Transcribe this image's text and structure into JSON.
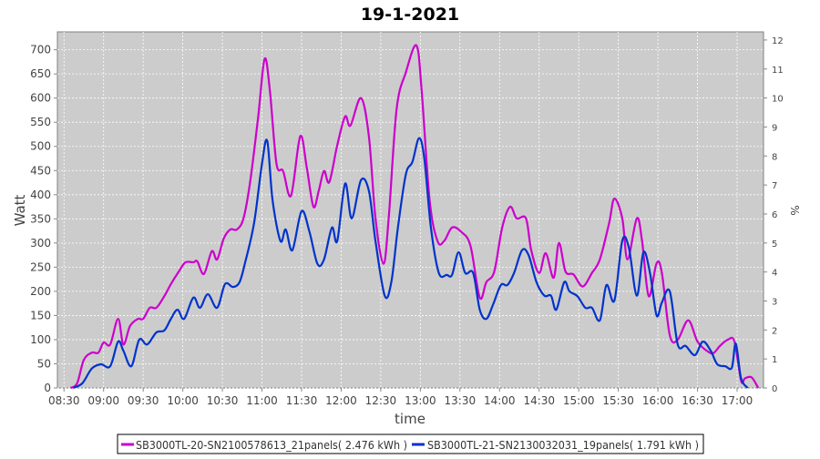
{
  "chart_data": {
    "type": "line",
    "title": "19-1-2021",
    "xlabel": "time",
    "ylabel": "Watt",
    "y2label": "%",
    "ylim": [
      0,
      737
    ],
    "y2lim": [
      0,
      12.28
    ],
    "xlim": [
      "08:25",
      "17:20"
    ],
    "yticks": [
      0,
      50,
      100,
      150,
      200,
      250,
      300,
      350,
      400,
      450,
      500,
      550,
      600,
      650,
      700
    ],
    "y2ticks": [
      0,
      1,
      2,
      3,
      4,
      5,
      6,
      7,
      8,
      9,
      10,
      11,
      12
    ],
    "xticks": [
      "08:30",
      "09:00",
      "09:30",
      "10:00",
      "10:30",
      "11:00",
      "11:30",
      "12:00",
      "12:30",
      "13:00",
      "13:30",
      "14:00",
      "14:30",
      "15:00",
      "15:30",
      "16:00",
      "16:30",
      "17:00"
    ],
    "grid": true,
    "legend_position": "bottom",
    "series": [
      {
        "name": "SB3000TL-20-SN2100578613_21panels( 2.476 kWh )",
        "color": "#cc00cc",
        "points": [
          [
            "08:35",
            0
          ],
          [
            "08:40",
            10
          ],
          [
            "08:45",
            58
          ],
          [
            "08:51",
            73
          ],
          [
            "08:56",
            73
          ],
          [
            "09:00",
            94
          ],
          [
            "09:05",
            90
          ],
          [
            "09:11",
            143
          ],
          [
            "09:15",
            90
          ],
          [
            "09:20",
            128
          ],
          [
            "09:26",
            143
          ],
          [
            "09:30",
            143
          ],
          [
            "09:35",
            166
          ],
          [
            "09:40",
            166
          ],
          [
            "09:46",
            190
          ],
          [
            "09:51",
            215
          ],
          [
            "09:57",
            241
          ],
          [
            "10:02",
            260
          ],
          [
            "10:08",
            260
          ],
          [
            "10:11",
            262
          ],
          [
            "10:16",
            236
          ],
          [
            "10:22",
            283
          ],
          [
            "10:26",
            266
          ],
          [
            "10:31",
            309
          ],
          [
            "10:36",
            328
          ],
          [
            "10:41",
            328
          ],
          [
            "10:46",
            351
          ],
          [
            "10:51",
            426
          ],
          [
            "10:57",
            558
          ],
          [
            "11:02",
            681
          ],
          [
            "11:06",
            615
          ],
          [
            "11:11",
            464
          ],
          [
            "11:16",
            449
          ],
          [
            "11:22",
            398
          ],
          [
            "11:29",
            521
          ],
          [
            "11:34",
            455
          ],
          [
            "11:39",
            375
          ],
          [
            "11:43",
            408
          ],
          [
            "11:47",
            449
          ],
          [
            "11:51",
            426
          ],
          [
            "11:57",
            502
          ],
          [
            "12:03",
            562
          ],
          [
            "12:07",
            543
          ],
          [
            "12:15",
            600
          ],
          [
            "12:21",
            521
          ],
          [
            "12:26",
            351
          ],
          [
            "12:32",
            257
          ],
          [
            "12:36",
            351
          ],
          [
            "12:42",
            577
          ],
          [
            "12:49",
            653
          ],
          [
            "12:57",
            709
          ],
          [
            "13:01",
            615
          ],
          [
            "13:07",
            389
          ],
          [
            "13:13",
            304
          ],
          [
            "13:18",
            304
          ],
          [
            "13:24",
            332
          ],
          [
            "13:31",
            323
          ],
          [
            "13:38",
            294
          ],
          [
            "13:45",
            187
          ],
          [
            "13:50",
            219
          ],
          [
            "13:56",
            241
          ],
          [
            "14:02",
            332
          ],
          [
            "14:08",
            375
          ],
          [
            "14:13",
            351
          ],
          [
            "14:20",
            351
          ],
          [
            "14:24",
            285
          ],
          [
            "14:30",
            238
          ],
          [
            "14:35",
            279
          ],
          [
            "14:41",
            228
          ],
          [
            "14:45",
            300
          ],
          [
            "14:50",
            241
          ],
          [
            "14:56",
            235
          ],
          [
            "15:03",
            210
          ],
          [
            "15:10",
            238
          ],
          [
            "15:16",
            266
          ],
          [
            "15:23",
            341
          ],
          [
            "15:27",
            392
          ],
          [
            "15:33",
            351
          ],
          [
            "15:37",
            266
          ],
          [
            "15:44",
            351
          ],
          [
            "15:48",
            304
          ],
          [
            "15:53",
            190
          ],
          [
            "15:59",
            258
          ],
          [
            "16:03",
            238
          ],
          [
            "16:09",
            109
          ],
          [
            "16:15",
            100
          ],
          [
            "16:23",
            140
          ],
          [
            "16:30",
            96
          ],
          [
            "16:37",
            77
          ],
          [
            "16:42",
            72
          ],
          [
            "16:47",
            87
          ],
          [
            "16:53",
            100
          ],
          [
            "16:58",
            96
          ],
          [
            "17:03",
            15
          ],
          [
            "17:06",
            20
          ],
          [
            "17:11",
            22
          ],
          [
            "17:16",
            0
          ]
        ]
      },
      {
        "name": "SB3000TL-21-SN2130032031_19panels( 1.791 kWh )",
        "color": "#0033cc",
        "points": [
          [
            "08:37",
            0
          ],
          [
            "08:44",
            10
          ],
          [
            "08:51",
            40
          ],
          [
            "08:58",
            49
          ],
          [
            "09:05",
            45
          ],
          [
            "09:11",
            96
          ],
          [
            "09:15",
            77
          ],
          [
            "09:21",
            45
          ],
          [
            "09:27",
            100
          ],
          [
            "09:33",
            90
          ],
          [
            "09:40",
            115
          ],
          [
            "09:46",
            119
          ],
          [
            "09:51",
            143
          ],
          [
            "09:56",
            162
          ],
          [
            "10:01",
            143
          ],
          [
            "10:08",
            187
          ],
          [
            "10:13",
            166
          ],
          [
            "10:19",
            194
          ],
          [
            "10:26",
            166
          ],
          [
            "10:32",
            215
          ],
          [
            "10:38",
            209
          ],
          [
            "10:43",
            219
          ],
          [
            "10:47",
            257
          ],
          [
            "10:54",
            341
          ],
          [
            "11:00",
            464
          ],
          [
            "11:04",
            511
          ],
          [
            "11:08",
            389
          ],
          [
            "11:14",
            304
          ],
          [
            "11:18",
            328
          ],
          [
            "11:23",
            285
          ],
          [
            "11:30",
            366
          ],
          [
            "11:36",
            323
          ],
          [
            "11:42",
            257
          ],
          [
            "11:47",
            266
          ],
          [
            "11:53",
            332
          ],
          [
            "11:57",
            304
          ],
          [
            "12:03",
            423
          ],
          [
            "12:08",
            351
          ],
          [
            "12:15",
            430
          ],
          [
            "12:21",
            408
          ],
          [
            "12:26",
            304
          ],
          [
            "12:33",
            191
          ],
          [
            "12:38",
            219
          ],
          [
            "12:43",
            332
          ],
          [
            "12:49",
            442
          ],
          [
            "12:54",
            468
          ],
          [
            "12:59",
            517
          ],
          [
            "13:03",
            475
          ],
          [
            "13:08",
            332
          ],
          [
            "13:14",
            238
          ],
          [
            "13:20",
            234
          ],
          [
            "13:24",
            234
          ],
          [
            "13:29",
            281
          ],
          [
            "13:34",
            238
          ],
          [
            "13:40",
            238
          ],
          [
            "13:45",
            162
          ],
          [
            "13:50",
            143
          ],
          [
            "13:55",
            172
          ],
          [
            "14:01",
            213
          ],
          [
            "14:06",
            213
          ],
          [
            "14:11",
            238
          ],
          [
            "14:17",
            285
          ],
          [
            "14:22",
            275
          ],
          [
            "14:28",
            219
          ],
          [
            "14:34",
            191
          ],
          [
            "14:39",
            191
          ],
          [
            "14:43",
            162
          ],
          [
            "14:49",
            219
          ],
          [
            "14:53",
            200
          ],
          [
            "14:59",
            190
          ],
          [
            "15:05",
            166
          ],
          [
            "15:10",
            166
          ],
          [
            "15:16",
            140
          ],
          [
            "15:21",
            213
          ],
          [
            "15:27",
            181
          ],
          [
            "15:33",
            305
          ],
          [
            "15:38",
            290
          ],
          [
            "15:44",
            191
          ],
          [
            "15:49",
            281
          ],
          [
            "15:54",
            238
          ],
          [
            "15:59",
            150
          ],
          [
            "16:03",
            177
          ],
          [
            "16:09",
            200
          ],
          [
            "16:15",
            90
          ],
          [
            "16:21",
            87
          ],
          [
            "16:28",
            68
          ],
          [
            "16:34",
            96
          ],
          [
            "16:40",
            77
          ],
          [
            "16:45",
            49
          ],
          [
            "16:51",
            45
          ],
          [
            "16:56",
            42
          ],
          [
            "16:59",
            92
          ],
          [
            "17:03",
            20
          ],
          [
            "17:08",
            0
          ]
        ]
      }
    ]
  }
}
